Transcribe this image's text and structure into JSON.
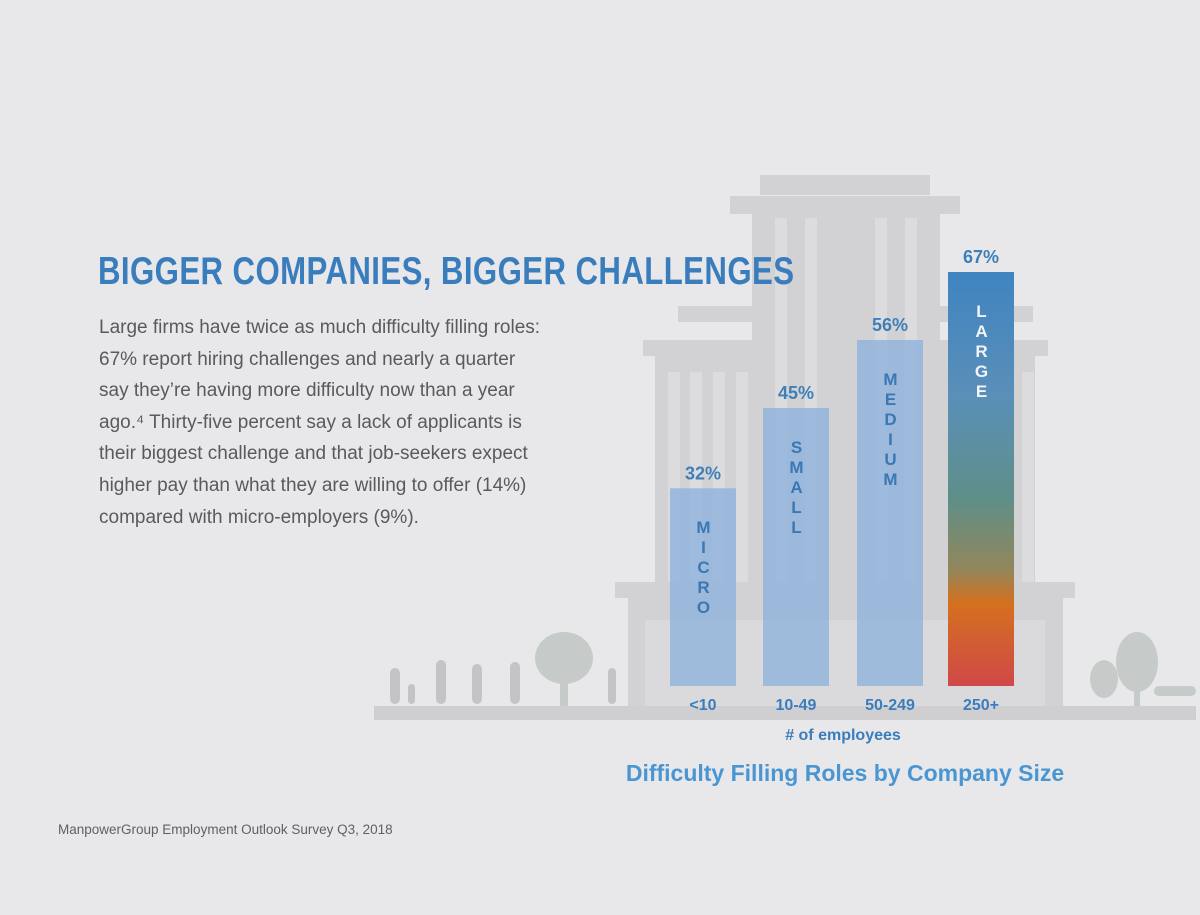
{
  "headline": "BIGGER COMPANIES, BIGGER CHALLENGES",
  "body_lines": [
    "Large firms have twice as much difficulty filling roles:",
    "67% report hiring challenges and nearly a quarter",
    "say they’re having more difficulty now than a year",
    "ago.⁴ Thirty-five percent say a lack of applicants is",
    "their biggest challenge and that job-seekers expect",
    "higher pay than what they are willing to offer (14%)",
    "compared with micro-employers (9%)."
  ],
  "source": "ManpowerGroup Employment Outlook Survey Q3, 2018",
  "chart_data": {
    "type": "bar",
    "title": "Difficulty Filling Roles by Company Size",
    "xlabel": "# of employees",
    "ylabel": "",
    "categories": [
      "<10",
      "10-49",
      "50-249",
      "250+"
    ],
    "size_labels": [
      "MICRO",
      "SMALL",
      "MEDIUM",
      "LARGE"
    ],
    "values": [
      32,
      45,
      56,
      67
    ],
    "value_labels": [
      "32%",
      "45%",
      "56%",
      "67%"
    ],
    "ylim": [
      0,
      67
    ],
    "grid": false,
    "colors": {
      "bar": "#8fb3dc",
      "bar_highlight_gradient": [
        "#3f84c0",
        "#5f8f94",
        "#d4701f",
        "#d04848"
      ],
      "label": "#3a7dbd",
      "title": "#4a96d2"
    }
  }
}
